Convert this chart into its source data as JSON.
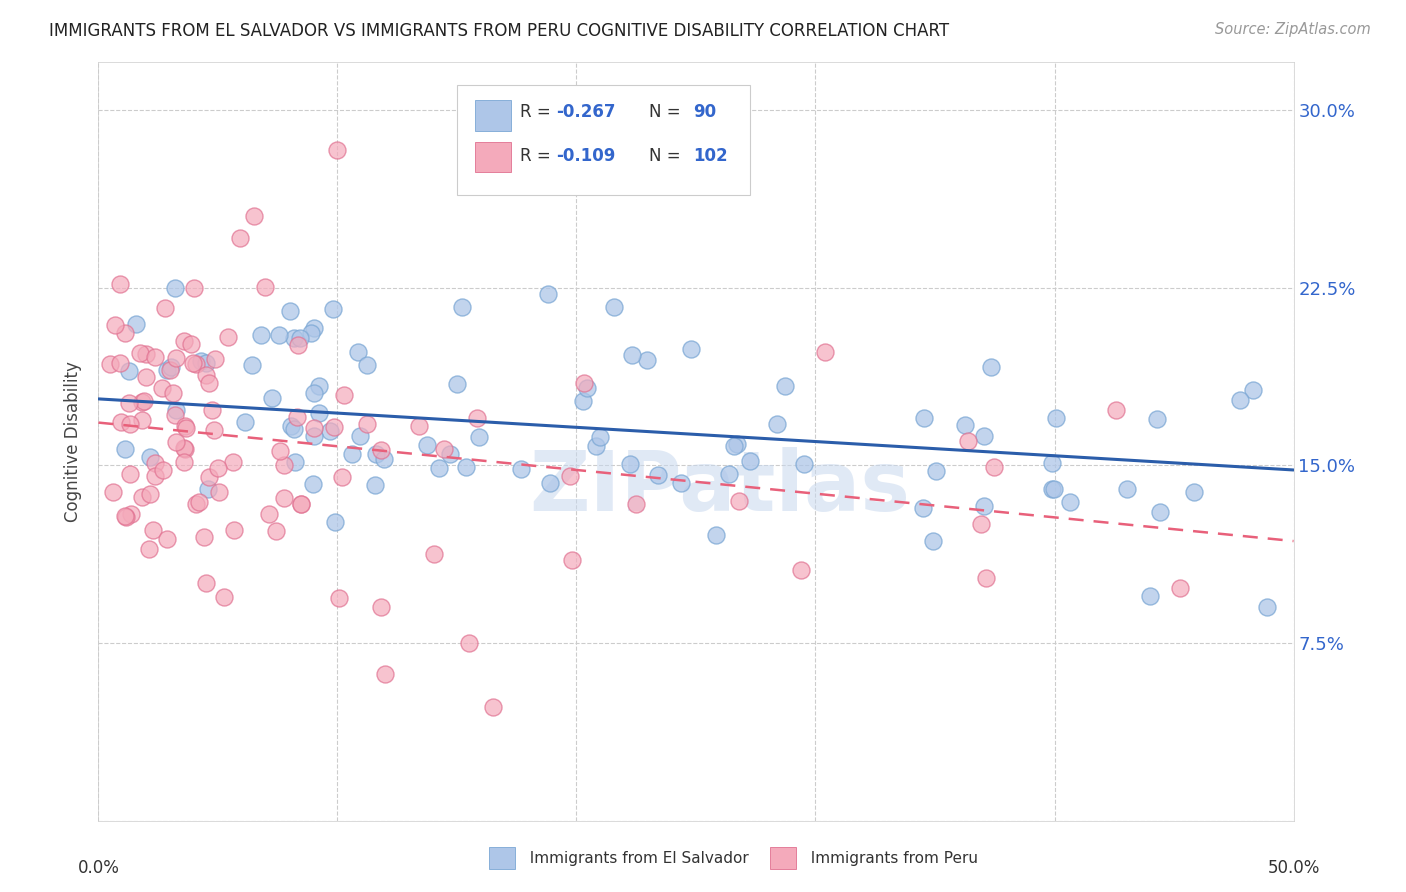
{
  "title": "IMMIGRANTS FROM EL SALVADOR VS IMMIGRANTS FROM PERU COGNITIVE DISABILITY CORRELATION CHART",
  "source": "Source: ZipAtlas.com",
  "ylabel": "Cognitive Disability",
  "xlim": [
    0.0,
    0.5
  ],
  "ylim": [
    0.0,
    0.32
  ],
  "ytick_vals": [
    0.0,
    0.075,
    0.15,
    0.225,
    0.3
  ],
  "ytick_labels": [
    "",
    "7.5%",
    "15.0%",
    "22.5%",
    "30.0%"
  ],
  "xtick_vals": [
    0.0,
    0.1,
    0.2,
    0.3,
    0.4,
    0.5
  ],
  "color_blue_fill": "#AEC6E8",
  "color_blue_edge": "#7BA7D4",
  "color_pink_fill": "#F4AABB",
  "color_pink_edge": "#E07090",
  "color_blue_line": "#2B5DAA",
  "color_pink_line": "#E8607A",
  "watermark": "ZIPatlas",
  "legend_r1": "R = -0.267",
  "legend_n1": "N =  90",
  "legend_r2": "R = -0.109",
  "legend_n2": "N = 102",
  "blue_line_x0": 0.0,
  "blue_line_y0": 0.178,
  "blue_line_x1": 0.5,
  "blue_line_y1": 0.148,
  "pink_line_x0": 0.0,
  "pink_line_y0": 0.168,
  "pink_line_x1": 0.5,
  "pink_line_y1": 0.118
}
